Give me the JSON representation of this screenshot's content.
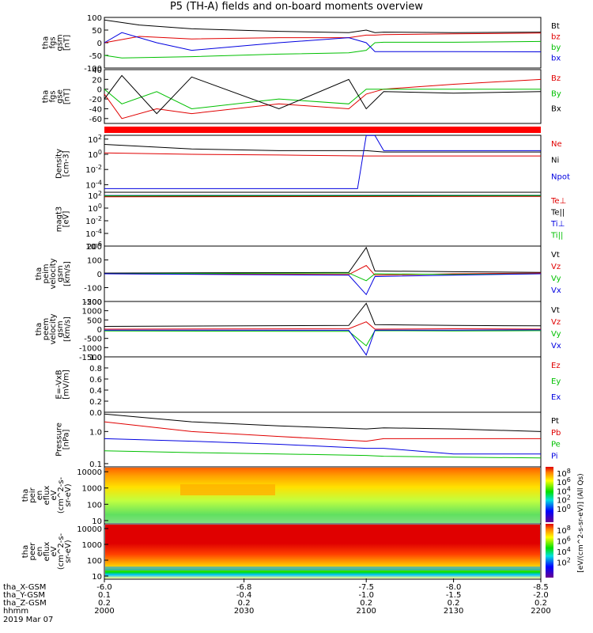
{
  "title": "P5 (TH-A) fields and on-board moments overview",
  "colors": {
    "black": "#000000",
    "red": "#e00000",
    "green": "#00c000",
    "blue": "#0000e0"
  },
  "chart_data": [
    {
      "id": "fgs_gsm",
      "type": "line",
      "ylabel": [
        "tha",
        "fgs",
        "gsm",
        "[nT]"
      ],
      "ylim": [
        -100,
        100
      ],
      "yticks": [
        "100",
        "50",
        "0",
        "-50",
        "-100"
      ],
      "series": [
        {
          "name": "Bt",
          "color": "black",
          "x": [
            -6.0,
            -6.2,
            -6.5,
            -7.0,
            -7.4,
            -7.5,
            -7.55,
            -7.6,
            -8.0,
            -8.5
          ],
          "y": [
            90,
            70,
            55,
            45,
            40,
            50,
            40,
            42,
            40,
            42
          ]
        },
        {
          "name": "bz",
          "color": "red",
          "x": [
            -6.0,
            -6.2,
            -6.5,
            -7.0,
            -7.4,
            -7.5,
            -7.55,
            -7.6,
            -8.0,
            -8.5
          ],
          "y": [
            0,
            25,
            15,
            20,
            20,
            30,
            30,
            32,
            35,
            38
          ]
        },
        {
          "name": "by",
          "color": "green",
          "x": [
            -6.0,
            -6.1,
            -6.5,
            -7.0,
            -7.4,
            -7.5,
            -7.55,
            -7.6,
            -8.0,
            -8.5
          ],
          "y": [
            -50,
            -60,
            -55,
            -45,
            -40,
            -30,
            0,
            2,
            2,
            5
          ]
        },
        {
          "name": "bx",
          "color": "blue",
          "x": [
            -6.0,
            -6.1,
            -6.3,
            -6.5,
            -7.0,
            -7.4,
            -7.5,
            -7.55,
            -8.0,
            -8.5
          ],
          "y": [
            0,
            40,
            0,
            -30,
            0,
            20,
            0,
            -35,
            -35,
            -36
          ]
        }
      ]
    },
    {
      "id": "fgs_gse",
      "type": "line",
      "ylabel": [
        "tha",
        "fgs",
        "gse",
        "[nT]"
      ],
      "ylim": [
        -70,
        40
      ],
      "yticks": [
        "40",
        "20",
        "0",
        "-20",
        "-40",
        "-60"
      ],
      "series": [
        {
          "name": "Bz",
          "color": "red",
          "x": [
            -6.0,
            -6.1,
            -6.3,
            -6.5,
            -7.0,
            -7.4,
            -7.5,
            -7.6,
            -8.0,
            -8.5
          ],
          "y": [
            -10,
            -60,
            -40,
            -50,
            -30,
            -40,
            -10,
            0,
            10,
            20
          ]
        },
        {
          "name": "By",
          "color": "green",
          "x": [
            -6.0,
            -6.1,
            -6.3,
            -6.5,
            -7.0,
            -7.4,
            -7.5,
            -7.6,
            -8.0,
            -8.5
          ],
          "y": [
            0,
            -30,
            -5,
            -40,
            -20,
            -30,
            0,
            0,
            0,
            0
          ]
        },
        {
          "name": "Bx",
          "color": "black",
          "x": [
            -6.0,
            -6.1,
            -6.3,
            -6.5,
            -7.0,
            -7.4,
            -7.5,
            -7.6,
            -8.0,
            -8.5
          ],
          "y": [
            -20,
            28,
            -50,
            25,
            -40,
            20,
            -40,
            -5,
            -8,
            -5
          ]
        }
      ]
    },
    {
      "id": "density",
      "type": "line",
      "scale": "log",
      "ylabel": [
        "Density",
        "[cm-3]"
      ],
      "yticks": [
        "10^2",
        "10^0",
        "10^-2",
        "10^-4"
      ],
      "series": [
        {
          "name": "Ne",
          "color": "red",
          "x": [
            -6.0,
            -6.5,
            -7.0,
            -7.5,
            -7.6,
            -8.0,
            -8.5
          ],
          "y": [
            1.5,
            1,
            0.8,
            0.6,
            0.6,
            0.6,
            0.6
          ]
        },
        {
          "name": "Ni",
          "color": "black",
          "x": [
            -6.0,
            -6.5,
            -7.0,
            -7.5,
            -7.6,
            -8.0,
            -8.5
          ],
          "y": [
            20,
            5,
            3,
            3,
            2,
            2,
            2
          ]
        },
        {
          "name": "Npot",
          "color": "blue",
          "x": [
            -6.0,
            -7.45,
            -7.5,
            -7.55,
            -7.6,
            -8.5
          ],
          "y": [
            3e-05,
            3e-05,
            300,
            300,
            3,
            3
          ]
        }
      ]
    },
    {
      "id": "magt3",
      "type": "line",
      "scale": "log",
      "ylabel": [
        "magt3",
        "[eV]"
      ],
      "yticks": [
        "10^2",
        "10^0",
        "10^-2",
        "10^-4",
        "10^-6"
      ],
      "series": [
        {
          "name": "Te⊥",
          "color": "red",
          "x": [
            -6.0,
            -8.5
          ],
          "y": [
            60,
            70
          ]
        },
        {
          "name": "Te||",
          "color": "black",
          "x": [
            -6.0,
            -8.5
          ],
          "y": [
            80,
            90
          ]
        },
        {
          "name": "Ti⊥",
          "color": "blue",
          "x": [
            -6.0,
            -8.5
          ],
          "y": [
            100,
            110
          ]
        },
        {
          "name": "Ti||",
          "color": "green",
          "x": [
            -6.0,
            -8.5
          ],
          "y": [
            90,
            100
          ]
        }
      ]
    },
    {
      "id": "peim",
      "type": "line",
      "ylabel": [
        "tha",
        "peim",
        "velocity",
        "gsm",
        "[km/s]"
      ],
      "ylim": [
        -200,
        200
      ],
      "yticks": [
        "200",
        "100",
        "0",
        "-100",
        "-200"
      ],
      "series": [
        {
          "name": "Vt",
          "color": "black",
          "x": [
            -6.0,
            -7.4,
            -7.5,
            -7.55,
            -8.0,
            -8.5
          ],
          "y": [
            5,
            10,
            190,
            20,
            15,
            10
          ]
        },
        {
          "name": "Vz",
          "color": "red",
          "x": [
            -6.0,
            -7.4,
            -7.5,
            -7.55,
            -8.0,
            -8.5
          ],
          "y": [
            0,
            -5,
            60,
            -10,
            0,
            5
          ]
        },
        {
          "name": "Vy",
          "color": "green",
          "x": [
            -6.0,
            -7.4,
            -7.5,
            -7.55,
            -8.0,
            -8.5
          ],
          "y": [
            0,
            5,
            -50,
            0,
            -5,
            0
          ]
        },
        {
          "name": "Vx",
          "color": "blue",
          "x": [
            -6.0,
            -7.4,
            -7.5,
            -7.55,
            -8.0,
            -8.5
          ],
          "y": [
            0,
            -10,
            -150,
            -20,
            -10,
            0
          ]
        }
      ]
    },
    {
      "id": "peem",
      "type": "line",
      "ylabel": [
        "tha",
        "peem",
        "velocity",
        "gsm",
        "[km/s]"
      ],
      "ylim": [
        -1500,
        1500
      ],
      "yticks": [
        "1500",
        "1000",
        "500",
        "0",
        "-500",
        "-1000",
        "-1500"
      ],
      "series": [
        {
          "name": "Vt",
          "color": "black",
          "x": [
            -6.0,
            -7.4,
            -7.5,
            -7.55,
            -8.0,
            -8.5
          ],
          "y": [
            150,
            200,
            1400,
            250,
            200,
            180
          ]
        },
        {
          "name": "Vz",
          "color": "red",
          "x": [
            -6.0,
            -7.4,
            -7.5,
            -7.55,
            -8.0,
            -8.5
          ],
          "y": [
            0,
            20,
            400,
            0,
            20,
            0
          ]
        },
        {
          "name": "Vy",
          "color": "green",
          "x": [
            -6.0,
            -7.4,
            -7.5,
            -7.55,
            -8.0,
            -8.5
          ],
          "y": [
            -100,
            -120,
            -900,
            -80,
            -100,
            -80
          ]
        },
        {
          "name": "Vx",
          "color": "blue",
          "x": [
            -6.0,
            -7.4,
            -7.5,
            -7.55,
            -8.0,
            -8.5
          ],
          "y": [
            -50,
            -60,
            -1400,
            -50,
            -50,
            -40
          ]
        }
      ]
    },
    {
      "id": "efield",
      "type": "line",
      "ylabel": [
        "E=-VxB",
        "[mV/m]"
      ],
      "ylim": [
        0,
        1
      ],
      "yticks": [
        "1.0",
        "0.8",
        "0.6",
        "0.4",
        "0.2",
        "0.0"
      ],
      "series": [
        {
          "name": "Ez",
          "color": "red",
          "x": [],
          "y": []
        },
        {
          "name": "Ey",
          "color": "green",
          "x": [],
          "y": []
        },
        {
          "name": "Ex",
          "color": "blue",
          "x": [],
          "y": []
        }
      ]
    },
    {
      "id": "pressure",
      "type": "line",
      "scale": "log",
      "ylabel": [
        "Pressure",
        "[nPa]"
      ],
      "yticks": [
        "1.0",
        "0.1"
      ],
      "series": [
        {
          "name": "Pt",
          "color": "black",
          "x": [
            -6.0,
            -6.5,
            -7.0,
            -7.5,
            -7.6,
            -8.0,
            -8.5
          ],
          "y": [
            3.5,
            2,
            1.5,
            1.2,
            1.3,
            1.2,
            1.0
          ]
        },
        {
          "name": "Pb",
          "color": "red",
          "x": [
            -6.0,
            -6.5,
            -7.0,
            -7.5,
            -7.6,
            -8.0,
            -8.5
          ],
          "y": [
            2,
            1,
            0.7,
            0.5,
            0.6,
            0.6,
            0.6
          ]
        },
        {
          "name": "Pe",
          "color": "green",
          "x": [
            -6.0,
            -6.5,
            -7.0,
            -7.5,
            -7.6,
            -8.0,
            -8.5
          ],
          "y": [
            0.25,
            0.22,
            0.2,
            0.18,
            0.17,
            0.16,
            0.15
          ]
        },
        {
          "name": "Pi",
          "color": "blue",
          "x": [
            -6.0,
            -6.5,
            -7.0,
            -7.5,
            -7.6,
            -8.0,
            -8.5
          ],
          "y": [
            0.6,
            0.5,
            0.4,
            0.3,
            0.3,
            0.2,
            0.2
          ]
        }
      ]
    },
    {
      "id": "peir",
      "type": "heatmap",
      "ylabel": [
        "tha",
        "peir",
        "en",
        "eflux",
        "eV",
        "(cm^2-s-",
        "sr-eV)"
      ],
      "yticks": [
        "10000",
        "1000",
        "100",
        "10"
      ]
    },
    {
      "id": "peer",
      "type": "heatmap",
      "ylabel": [
        "tha",
        "peer",
        "en",
        "eflux",
        "eV",
        "(cm^2-s-",
        "sr-eV)"
      ],
      "yticks": [
        "10000",
        "1000",
        "100",
        "10"
      ]
    }
  ],
  "colorbar": {
    "label": "[eV/(cm^2-s-sr-eV)] (All Qs)",
    "ticks_top": [
      "10^8",
      "10^6",
      "10^4",
      "10^2",
      "10^0"
    ],
    "ticks_bottom": [
      "10^8",
      "10^6",
      "10^4",
      "10^2"
    ]
  },
  "xaxis": {
    "row_labels": [
      "tha_X-GSM",
      "tha_Y-GSM",
      "tha_Z-GSM",
      "hhmm",
      "2019 Mar 07"
    ],
    "columns": [
      {
        "x": "-6.0",
        "y": "0.1",
        "z": "0.2",
        "hhmm": "2000"
      },
      {
        "x": "-6.8",
        "y": "-0.4",
        "z": "0.2",
        "hhmm": "2030"
      },
      {
        "x": "-7.5",
        "y": "-1.0",
        "z": "0.2",
        "hhmm": "2100"
      },
      {
        "x": "-8.0",
        "y": "-1.5",
        "z": "0.2",
        "hhmm": "2130"
      },
      {
        "x": "-8.5",
        "y": "-2.0",
        "z": "0.2",
        "hhmm": "2200"
      }
    ]
  }
}
